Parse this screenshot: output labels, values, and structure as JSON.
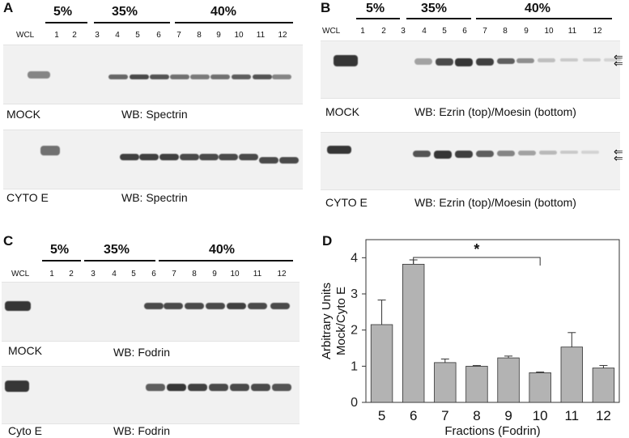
{
  "panels": {
    "A": {
      "label": "A",
      "pct": [
        "5%",
        "35%",
        "40%"
      ],
      "wcl": "WCL",
      "lanes": [
        "1",
        "2",
        "3",
        "4",
        "5",
        "6",
        "7",
        "8",
        "9",
        "10",
        "11",
        "12"
      ],
      "blot1": {
        "condition": "MOCK",
        "wb": "WB:  Spectrin"
      },
      "blot2": {
        "condition": "CYTO E",
        "wb": "WB:  Spectrin"
      }
    },
    "B": {
      "label": "B",
      "pct": [
        "5%",
        "35%",
        "40%"
      ],
      "wcl": "WCL",
      "lanes": [
        "1",
        "2",
        "3",
        "4",
        "5",
        "6",
        "7",
        "8",
        "9",
        "10",
        "11",
        "12"
      ],
      "blot1": {
        "condition": "MOCK",
        "wb": "WB:  Ezrin (top)/Moesin (bottom)"
      },
      "blot2": {
        "condition": "CYTO E",
        "wb": "WB:  Ezrin (top)/Moesin (bottom)"
      }
    },
    "C": {
      "label": "C",
      "pct": [
        "5%",
        "35%",
        "40%"
      ],
      "wcl": "WCL",
      "lanes": [
        "1",
        "2",
        "3",
        "4",
        "5",
        "6",
        "7",
        "8",
        "9",
        "10",
        "11",
        "12"
      ],
      "blot1": {
        "condition": "MOCK",
        "wb": "WB:  Fodrin"
      },
      "blot2": {
        "condition": "Cyto E",
        "wb": "WB:  Fodrin"
      }
    },
    "D": {
      "label": "D"
    }
  },
  "chart_data": {
    "type": "bar",
    "categories": [
      "5",
      "6",
      "7",
      "8",
      "9",
      "10",
      "11",
      "12"
    ],
    "values": [
      2.15,
      3.82,
      1.1,
      1.0,
      1.23,
      0.82,
      1.53,
      0.95
    ],
    "errors": [
      0.68,
      0.12,
      0.1,
      0.02,
      0.05,
      0.02,
      0.4,
      0.07
    ],
    "xlabel": "Fractions (Fodrin)",
    "ylabel_line1": "Arbitrary Units",
    "ylabel_line2": "Mock/Cyto E",
    "ylim": [
      0,
      4.5
    ],
    "yticks": [
      "0",
      "1",
      "2",
      "3",
      "4"
    ],
    "significance": {
      "from": "6",
      "to": "10",
      "label": "*"
    },
    "bar_color": "#b3b3b3"
  }
}
